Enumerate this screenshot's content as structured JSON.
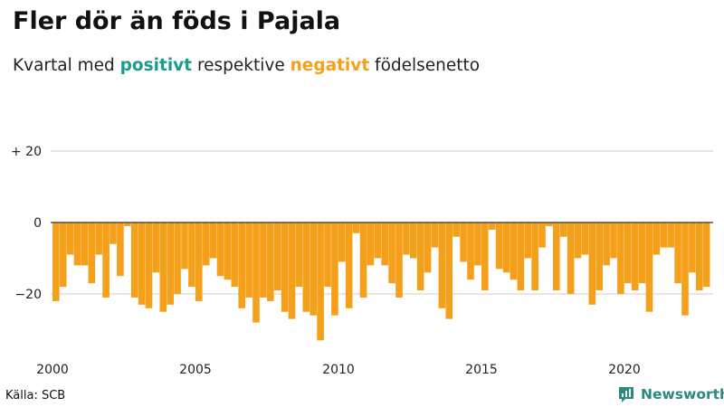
{
  "header": {
    "title": "Fler dör än föds i Pajala",
    "subtitle_pre": "Kvartal med ",
    "subtitle_pos": "positivt",
    "subtitle_mid": " respektive ",
    "subtitle_neg": "negativt",
    "subtitle_post": " födelsenetto"
  },
  "footer": {
    "source": "Källa: SCB",
    "brand": "Newsworthy"
  },
  "colors": {
    "positive": "#1a9c8c",
    "negative": "#f5a01a",
    "gridline": "#cccccc",
    "zero_line": "#333333",
    "brand": "#2a8a80"
  },
  "chart_data": {
    "type": "bar",
    "title": "Fler dör än föds i Pajala",
    "ylim": [
      -35,
      25
    ],
    "yticks": [
      {
        "value": 20,
        "label": "+ 20"
      },
      {
        "value": 0,
        "label": "0"
      },
      {
        "value": -20,
        "label": "−20"
      }
    ],
    "xticks": [
      {
        "value": 2000,
        "label": "2000"
      },
      {
        "value": 2005,
        "label": "2005"
      },
      {
        "value": 2010,
        "label": "2010"
      },
      {
        "value": 2015,
        "label": "2015"
      },
      {
        "value": 2020,
        "label": "2020"
      }
    ],
    "start_year": 2000,
    "values": [
      -22,
      -18,
      -9,
      -12,
      -12,
      -17,
      -9,
      -21,
      -6,
      -15,
      -1,
      -21,
      -23,
      -24,
      -14,
      -25,
      -23,
      -20,
      -13,
      -18,
      -22,
      -12,
      -10,
      -15,
      -16,
      -18,
      -24,
      -21,
      -28,
      -21,
      -22,
      -19,
      -25,
      -27,
      -18,
      -25,
      -26,
      -33,
      -18,
      -26,
      -11,
      -24,
      -3,
      -21,
      -12,
      -10,
      -12,
      -17,
      -21,
      -9,
      -10,
      -19,
      -14,
      -7,
      -24,
      -27,
      -4,
      -11,
      -16,
      -12,
      -19,
      -2,
      -13,
      -14,
      -16,
      -19,
      -10,
      -19,
      -7,
      -1,
      -19,
      -4,
      -20,
      -10,
      -9,
      -23,
      -19,
      -12,
      -10,
      -20,
      -17,
      -19,
      -17,
      -25,
      -9,
      -7,
      -7,
      -17,
      -26,
      -14,
      -19,
      -18
    ]
  }
}
